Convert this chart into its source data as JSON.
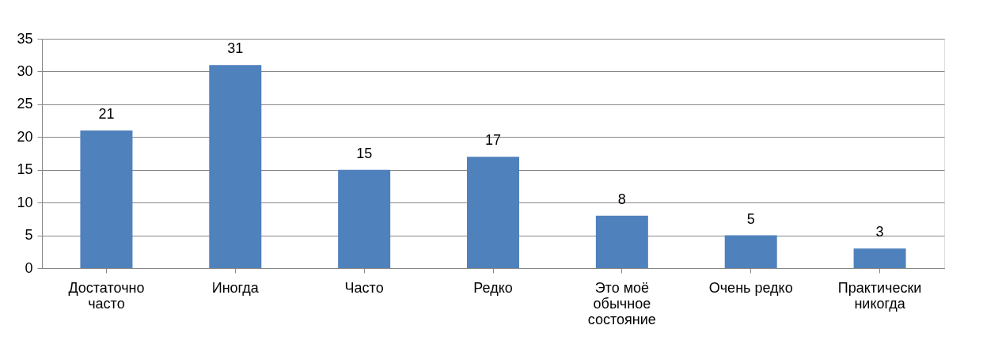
{
  "chart_data": {
    "type": "bar",
    "categories": [
      "Достаточно часто",
      "Иногда",
      "Часто",
      "Редко",
      "Это моё обычное состояние",
      "Очень редко",
      "Практически никогда"
    ],
    "values": [
      21,
      31,
      15,
      17,
      8,
      5,
      3
    ],
    "color": "#4f81bd",
    "ylim": [
      0,
      35
    ],
    "yticks": [
      0,
      5,
      10,
      15,
      20,
      25,
      30,
      35
    ],
    "grid": "y",
    "data_labels": true
  }
}
